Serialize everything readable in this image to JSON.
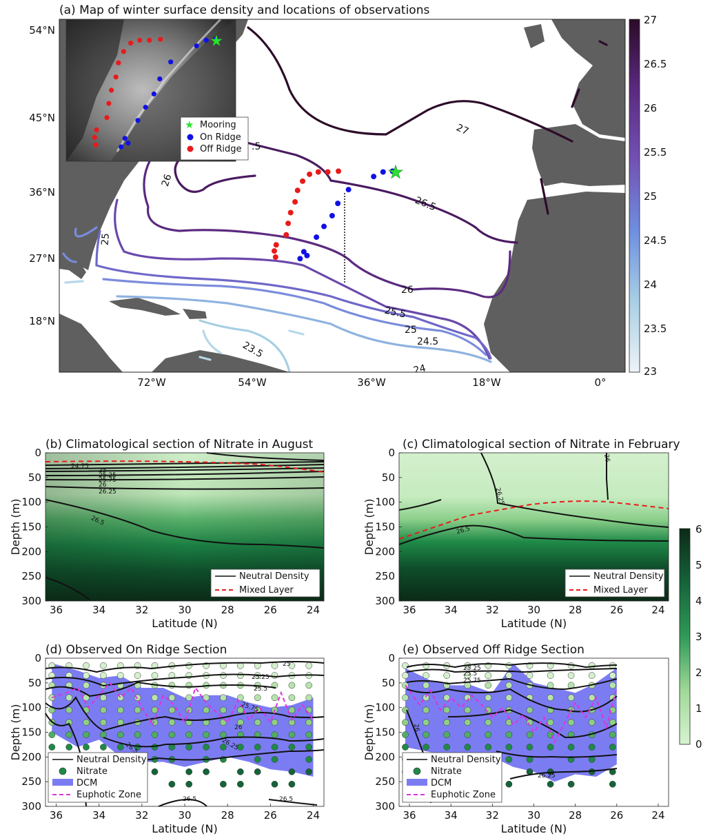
{
  "panel_a": {
    "title": "(a) Map of winter surface density and locations of observations",
    "lon_ticks": [
      "72°W",
      "54°W",
      "36°W",
      "18°W",
      "0°"
    ],
    "lat_ticks": [
      "54°N",
      "45°N",
      "36°N",
      "27°N",
      "18°N"
    ],
    "colorbar_ticks": [
      "27",
      "26.5",
      "26",
      "25.5",
      "25",
      "24.5",
      "24",
      "23.5",
      "23"
    ],
    "contour_labels": [
      "27",
      "26.5",
      "26",
      "26",
      "25.5",
      "25",
      "25",
      "24.5",
      "24",
      "23.5",
      ".5"
    ],
    "legend": {
      "mooring": "Mooring",
      "on_ridge": "On Ridge",
      "off_ridge": "Off Ridge"
    },
    "colors": {
      "land": "#5f5f5f",
      "on_ridge": "#1010e6",
      "off_ridge": "#e81a1a",
      "mooring": "#27e22e"
    }
  },
  "panel_b": {
    "title": "(b) Climatological section of Nitrate in August",
    "contour_labels": [
      "24.75",
      "25",
      "25.25",
      "25.75",
      "26",
      "26.25",
      "26.5"
    ],
    "legend": {
      "density": "Neutral Density",
      "mixed": "Mixed Layer"
    }
  },
  "panel_c": {
    "title": "(c) Climatological section of Nitrate in February",
    "contour_labels": [
      "26",
      "26.25",
      "26.5"
    ],
    "legend": {
      "density": "Neutral Density",
      "mixed": "Mixed Layer"
    }
  },
  "panel_d": {
    "title": "(d) Observed On Ridge Section",
    "contour_labels": [
      "25",
      "25.25",
      "25.5",
      "25.75",
      "26",
      "26.25",
      "26.5",
      "26.5",
      "26.5"
    ],
    "legend": {
      "density": "Neutral Density",
      "nitrate": "Nitrate",
      "dcm": "DCM",
      "euphotic": "Euphotic Zone"
    }
  },
  "panel_e": {
    "title": "(e) Observed Off Ridge Section",
    "contour_labels": [
      "25.25",
      "25.5",
      "25.75",
      "26",
      "26.25"
    ],
    "legend": {
      "density": "Neutral Density",
      "nitrate": "Nitrate",
      "dcm": "DCM",
      "euphotic": "Euphotic Zone"
    }
  },
  "section_axes": {
    "ylabel": "Depth (m)",
    "xlabel": "Latitude (N)",
    "y_ticks": [
      "0",
      "50",
      "100",
      "150",
      "200",
      "250",
      "300"
    ],
    "x_ticks": [
      "36",
      "34",
      "32",
      "30",
      "28",
      "26",
      "24"
    ]
  },
  "nitrate_colorbar_ticks": [
    "6",
    "5",
    "4",
    "3",
    "2",
    "1",
    "0"
  ],
  "chart_data": [
    {
      "type": "map",
      "panel": "a",
      "xlim": [
        -85,
        5
      ],
      "ylim": [
        10,
        56
      ],
      "colorbar": {
        "range": [
          23,
          27
        ]
      },
      "contour_levels": [
        23.5,
        24,
        24.5,
        25,
        25.5,
        26,
        26.5,
        27
      ],
      "on_ridge_stations": [
        [
          -32,
          36.2
        ],
        [
          -33.5,
          36.1
        ],
        [
          -35,
          35.5
        ],
        [
          -39,
          33.8
        ],
        [
          -40.7,
          32
        ],
        [
          -41.6,
          30.4
        ],
        [
          -42.9,
          29
        ],
        [
          -44.1,
          27.6
        ],
        [
          -46.1,
          25.7
        ],
        [
          -45.6,
          25.2
        ],
        [
          -46.7,
          24.8
        ]
      ],
      "off_ridge_stations": [
        [
          -40.6,
          36.2
        ],
        [
          -42.3,
          36.1
        ],
        [
          -43.8,
          36.1
        ],
        [
          -45.2,
          35.8
        ],
        [
          -46.3,
          34.9
        ],
        [
          -47.1,
          33.7
        ],
        [
          -47.5,
          32.2
        ],
        [
          -48.2,
          30.8
        ],
        [
          -48.6,
          29.4
        ],
        [
          -48.9,
          27.9
        ],
        [
          -50.5,
          26.6
        ],
        [
          -50.8,
          25.8
        ],
        [
          -50.6,
          25
        ]
      ],
      "mooring": [
        -31.5,
        36
      ]
    },
    {
      "type": "heatmap",
      "panel": "b",
      "month": "August",
      "xlim": [
        36.5,
        23.5
      ],
      "ylim": [
        300,
        0
      ],
      "colorbar": {
        "range": [
          0,
          6
        ]
      },
      "density_contours": [
        {
          "level": 24.75,
          "lat": [
            36.5,
            32,
            28,
            24
          ],
          "depth": [
            25,
            25,
            22,
            20
          ]
        },
        {
          "level": 25,
          "lat": [
            36.5,
            32,
            28,
            24
          ],
          "depth": [
            31,
            30,
            28,
            24
          ]
        },
        {
          "level": 25.25,
          "lat": [
            36.5,
            32,
            28,
            24
          ],
          "depth": [
            37,
            36,
            34,
            30
          ]
        },
        {
          "level": 25.75,
          "lat": [
            36.5,
            32,
            28,
            24
          ],
          "depth": [
            46,
            45,
            42,
            38
          ]
        },
        {
          "level": 26,
          "lat": [
            36.5,
            32,
            28,
            24
          ],
          "depth": [
            54,
            55,
            52,
            48
          ]
        },
        {
          "level": 26.25,
          "lat": [
            36.5,
            32,
            28,
            24
          ],
          "depth": [
            68,
            73,
            72,
            70
          ]
        },
        {
          "level": 26.5,
          "lat": [
            36.5,
            33,
            30,
            27,
            24
          ],
          "depth": [
            95,
            140,
            160,
            160,
            162
          ]
        }
      ],
      "mixed_layer": {
        "lat": [
          36.5,
          32,
          28,
          26,
          23.5
        ],
        "depth": [
          18,
          17,
          22,
          28,
          38
        ]
      }
    },
    {
      "type": "heatmap",
      "panel": "c",
      "month": "February",
      "xlim": [
        36.5,
        23.5
      ],
      "ylim": [
        300,
        0
      ],
      "colorbar": {
        "range": [
          0,
          6
        ]
      },
      "density_contours": [
        {
          "level": 26,
          "lat": [
            26,
            25.8,
            25.5
          ],
          "depth": [
            0,
            50,
            98
          ]
        },
        {
          "level": 26.25,
          "lat": [
            31.5,
            31.2,
            31,
            26,
            23.5
          ],
          "depth": [
            0,
            60,
            105,
            130,
            140
          ]
        },
        {
          "level": 26.5,
          "lat": [
            36.5,
            33,
            30,
            27,
            23.5
          ],
          "depth": [
            175,
            155,
            140,
            190,
            198
          ]
        }
      ],
      "mixed_layer": {
        "lat": [
          36.5,
          33,
          30,
          28,
          26,
          23.5
        ],
        "depth": [
          175,
          150,
          112,
          108,
          108,
          112
        ]
      }
    },
    {
      "type": "scatter",
      "panel": "d",
      "section": "On Ridge",
      "xlim": [
        36.5,
        23.5
      ],
      "ylim": [
        300,
        0
      ],
      "euphotic_zone": {
        "lat": [
          36.2,
          35.5,
          35,
          34.5,
          34,
          33.5,
          33,
          32.5,
          32,
          31.5,
          31,
          30.5,
          30,
          29.5,
          29,
          28.5,
          28,
          27.5,
          27,
          26.5,
          26,
          25.5,
          25,
          24.5,
          24
        ],
        "depth": [
          80,
          70,
          60,
          100,
          75,
          50,
          80,
          60,
          100,
          135,
          75,
          95,
          130,
          60,
          90,
          110,
          130,
          85,
          125,
          100,
          130,
          70,
          125,
          95,
          125
        ]
      },
      "dcm_band": {
        "lat": [
          36.2,
          35,
          34,
          33,
          32,
          31,
          30,
          29,
          28,
          27,
          26,
          25,
          24
        ],
        "top": [
          10,
          25,
          40,
          35,
          60,
          60,
          80,
          75,
          75,
          90,
          100,
          95,
          80
        ],
        "bottom": [
          150,
          180,
          165,
          200,
          210,
          210,
          220,
          210,
          200,
          210,
          225,
          230,
          240
        ]
      }
    },
    {
      "type": "scatter",
      "panel": "e",
      "section": "Off Ridge",
      "xlim": [
        36.5,
        23.5
      ],
      "ylim": [
        300,
        0
      ],
      "euphotic_zone": {
        "lat": [
          36.2,
          35.5,
          35,
          34.5,
          34,
          33.5,
          33,
          32.5,
          32,
          31.5,
          31,
          30.5,
          30,
          29.5,
          29,
          28.5,
          28,
          27.5,
          27,
          26.5,
          26
        ],
        "depth": [
          55,
          95,
          65,
          105,
          80,
          100,
          75,
          95,
          120,
          100,
          135,
          115,
          150,
          120,
          170,
          130,
          90,
          120,
          80,
          140,
          60
        ]
      },
      "dcm_band": {
        "lat": [
          36.2,
          35,
          34,
          33,
          32,
          31,
          30,
          29,
          28,
          27,
          26
        ],
        "top": [
          20,
          45,
          55,
          55,
          70,
          10,
          50,
          60,
          70,
          50,
          20
        ],
        "bottom": [
          180,
          190,
          195,
          200,
          200,
          220,
          230,
          250,
          235,
          240,
          215
        ]
      }
    }
  ]
}
